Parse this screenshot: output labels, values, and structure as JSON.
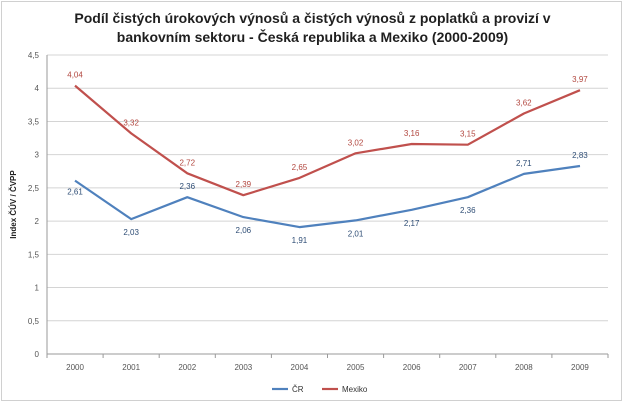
{
  "chart_data": {
    "type": "line",
    "title_line1": "Podíl čistých úrokových výnosů a čistých výnosů z poplatků a provizí  v",
    "title_line2": "bankovním sektoru - Česká republika a Mexiko (2000-2009)",
    "ylabel": "Index ČÚV / ČVPP",
    "xlabel": "",
    "x": [
      "2000",
      "2001",
      "2002",
      "2003",
      "2004",
      "2005",
      "2006",
      "2007",
      "2008",
      "2009"
    ],
    "ylim": [
      0,
      4.5
    ],
    "yticks": [
      "0",
      "0,5",
      "1",
      "1,5",
      "2",
      "2,5",
      "3",
      "3,5",
      "4",
      "4,5"
    ],
    "grid": true,
    "legend_position": "bottom",
    "series": [
      {
        "name": "ČR",
        "color": "#4f81bd",
        "values": [
          2.61,
          2.03,
          2.36,
          2.06,
          1.91,
          2.01,
          2.17,
          2.36,
          2.71,
          2.83
        ],
        "labels": [
          "2,61",
          "2,03",
          "2,36",
          "2,06",
          "1,91",
          "2,01",
          "2,17",
          "2,36",
          "2,71",
          "2,83"
        ]
      },
      {
        "name": "Mexiko",
        "color": "#c0504d",
        "values": [
          4.04,
          3.32,
          2.72,
          2.39,
          2.65,
          3.02,
          3.16,
          3.15,
          3.62,
          3.97
        ],
        "labels": [
          "4,04",
          "3,32",
          "2,72",
          "2,39",
          "2,65",
          "3,02",
          "3,16",
          "3,15",
          "3,62",
          "3,97"
        ]
      }
    ]
  }
}
